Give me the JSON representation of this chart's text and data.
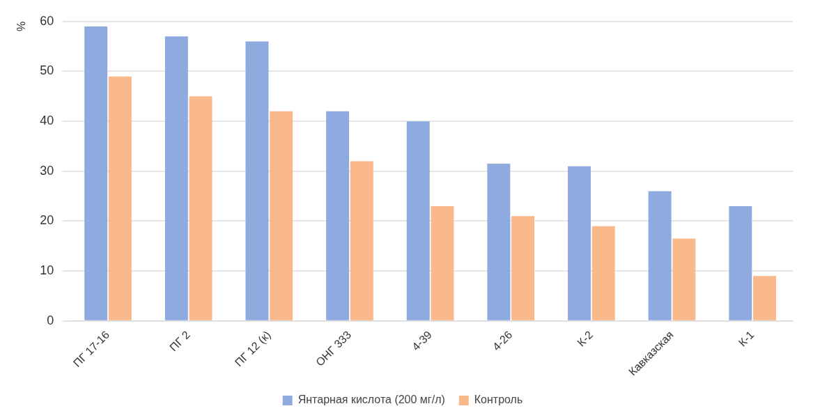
{
  "chart_data": {
    "type": "bar",
    "ylabel": "%",
    "categories": [
      "ПГ 17-16",
      "ПГ 2",
      "ПГ 12 (к)",
      "ОНГ 333",
      "4-39",
      "4-26",
      "К-2",
      "Кавказская",
      "К-1"
    ],
    "series": [
      {
        "name": "Янтарная кислота (200 мг/л)",
        "color": "#8eaadf",
        "values": [
          59,
          57,
          56,
          42,
          40,
          31.5,
          31,
          26,
          23
        ]
      },
      {
        "name": "Контроль",
        "color": "#f9b98a",
        "values": [
          49,
          45,
          42,
          32,
          23,
          21,
          19,
          16.5,
          9
        ]
      }
    ],
    "ylim": [
      0,
      60
    ],
    "yticks": [
      0,
      10,
      20,
      30,
      40,
      50,
      60
    ],
    "grid": "y",
    "legend": "bottom"
  }
}
